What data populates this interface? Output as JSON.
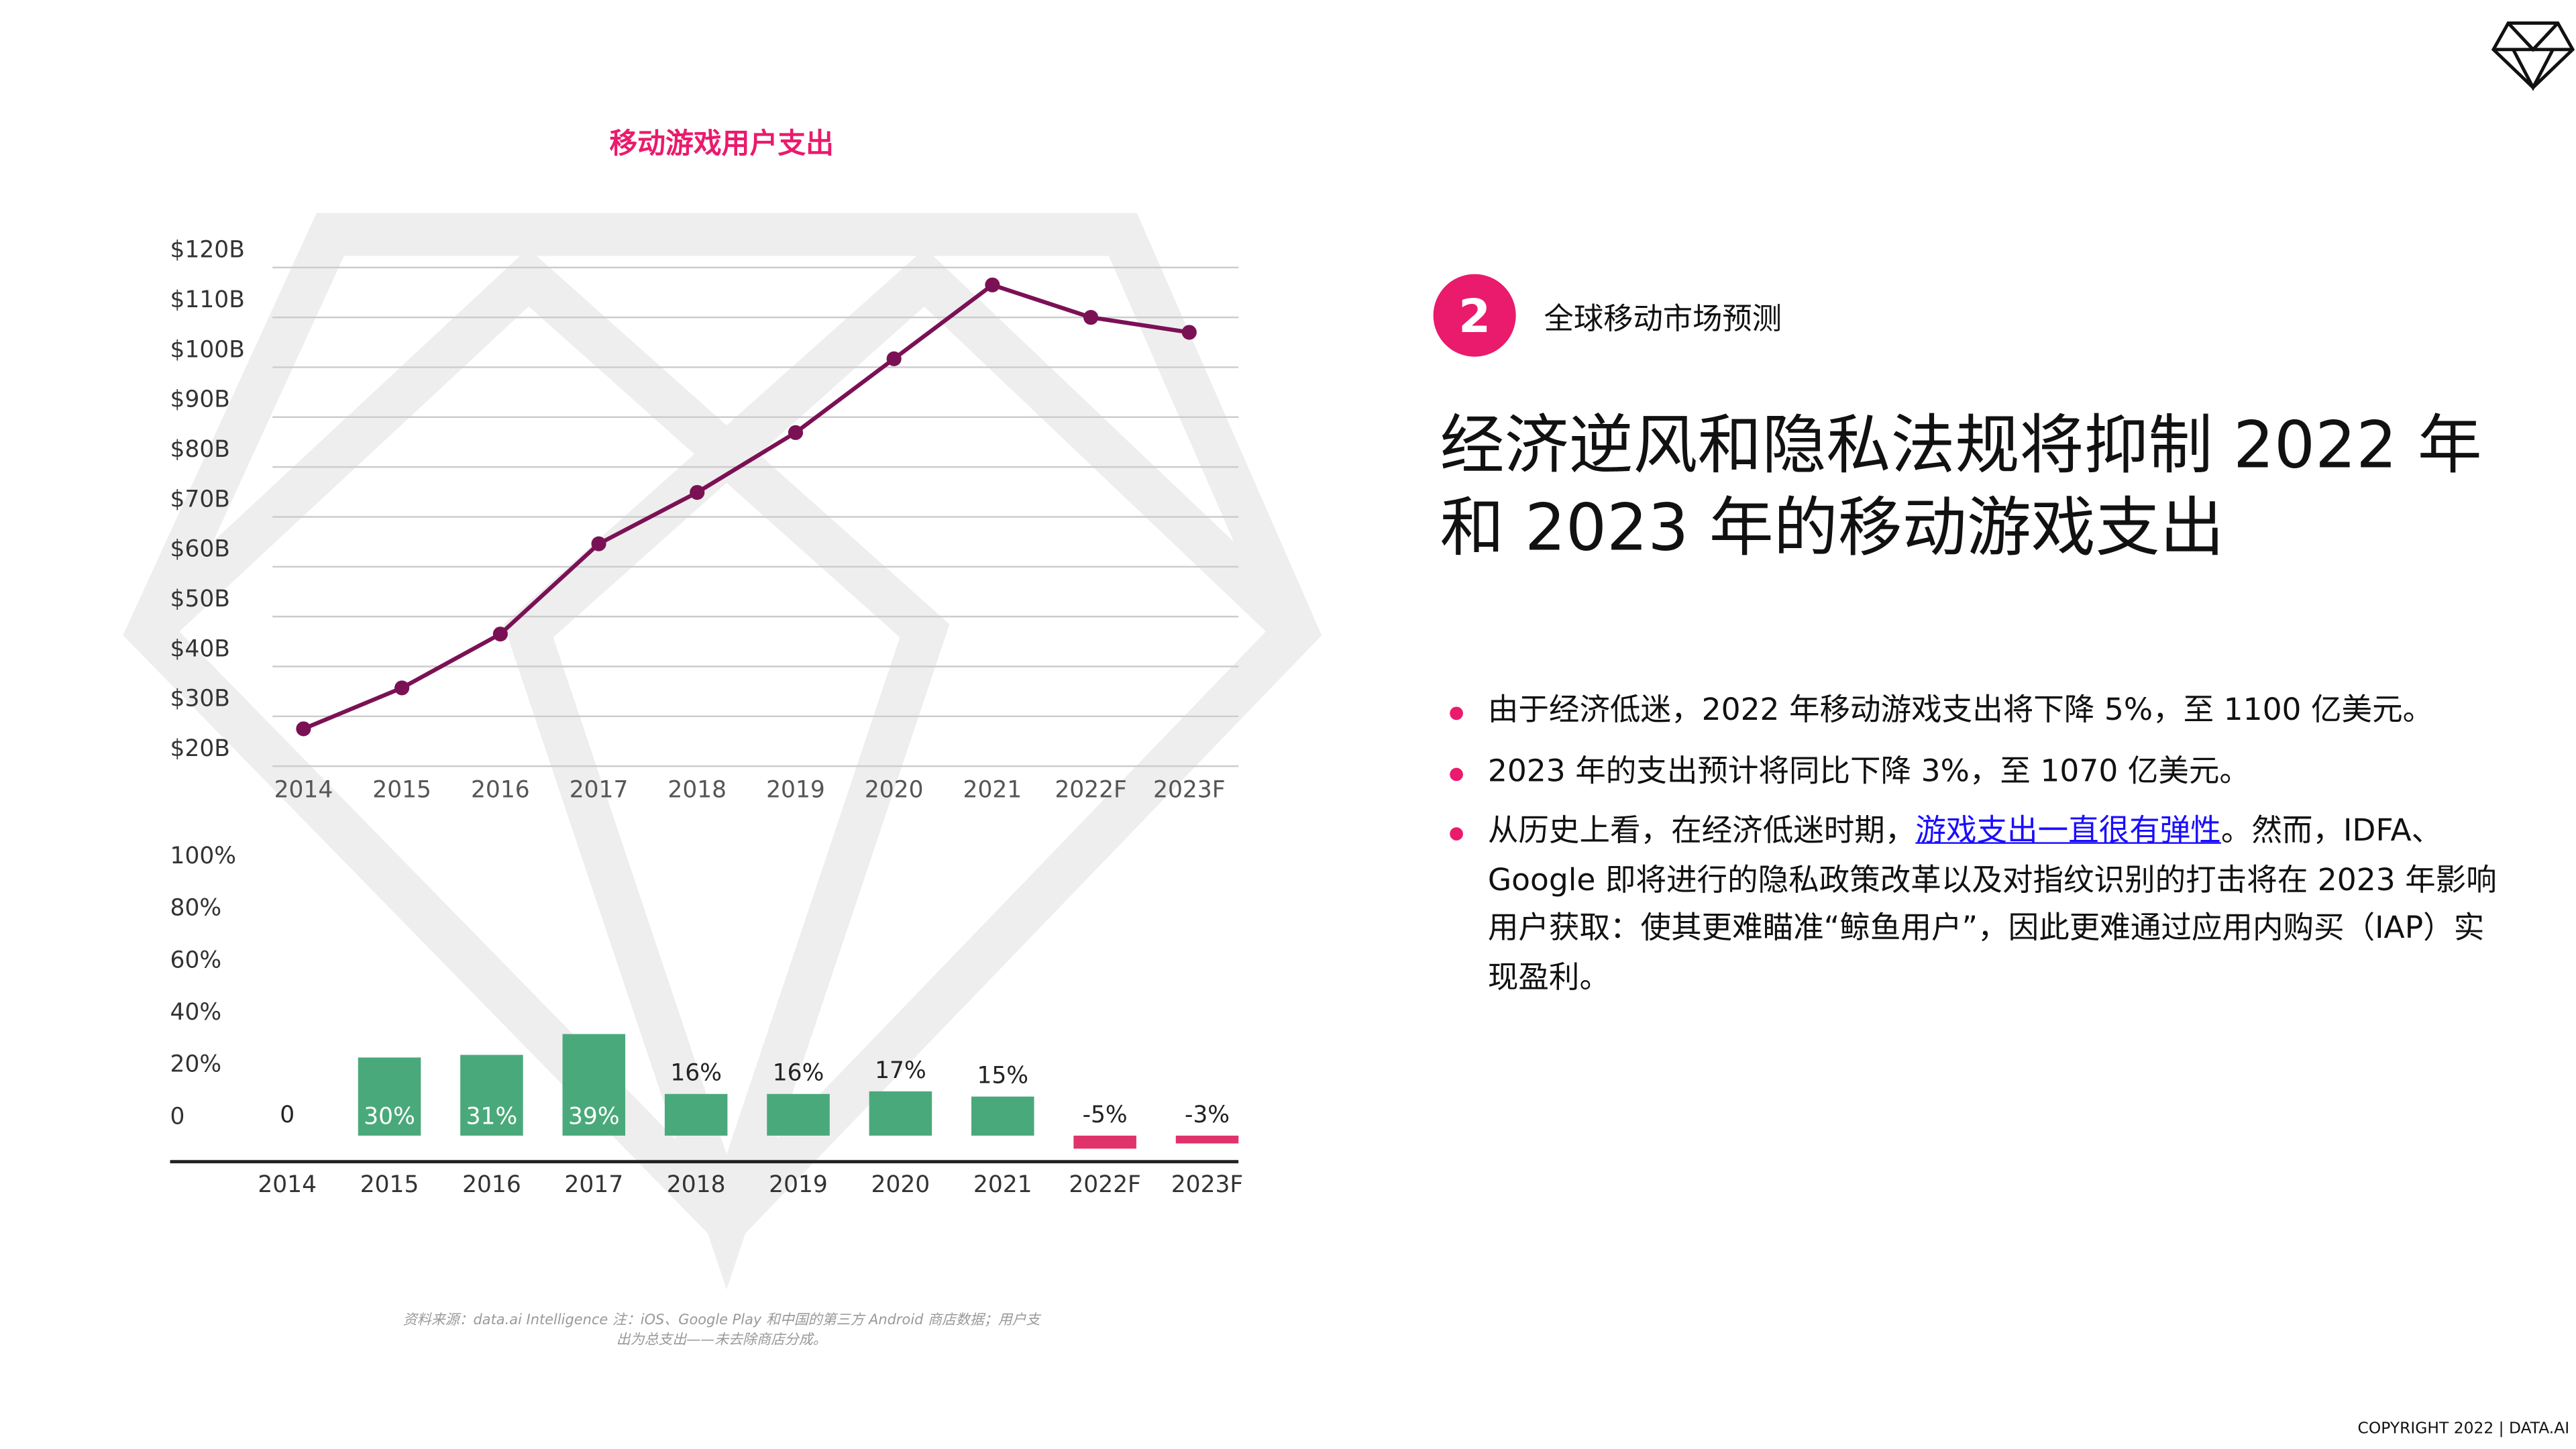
{
  "chart_data": [
    {
      "type": "line",
      "title": "移动游戏用户支出",
      "categories": [
        "2014",
        "2015",
        "2016",
        "2017",
        "2018",
        "2019",
        "2020",
        "2021",
        "2022F",
        "2023F"
      ],
      "series": [
        {
          "color": "#7b1155",
          "values": [
            27.5,
            35.7,
            46.5,
            64.6,
            74.9,
            86.9,
            101.7,
            116.5,
            110,
            107
          ]
        }
      ],
      "ylim": [
        20,
        120
      ],
      "yticks": [
        {
          "value": 20,
          "label": "$20B"
        },
        {
          "value": 30,
          "label": "$30B"
        },
        {
          "value": 40,
          "label": "$40B"
        },
        {
          "value": 50,
          "label": "$50B"
        },
        {
          "value": 60,
          "label": "$60B"
        },
        {
          "value": 70,
          "label": "$70B"
        },
        {
          "value": 80,
          "label": "$80B"
        },
        {
          "value": 90,
          "label": "$90B"
        },
        {
          "value": 100,
          "label": "$100B"
        },
        {
          "value": 110,
          "label": "$110B"
        },
        {
          "value": 120,
          "label": "$120B"
        }
      ],
      "grid": true
    },
    {
      "type": "bar",
      "categories": [
        "2014",
        "2015",
        "2016",
        "2017",
        "2018",
        "2019",
        "2020",
        "2021",
        "2022F",
        "2023F"
      ],
      "values": [
        0,
        30,
        31,
        39,
        16,
        16,
        17,
        15,
        -5,
        -3
      ],
      "value_labels": [
        "0",
        "30%",
        "31%",
        "39%",
        "16%",
        "16%",
        "17%",
        "15%",
        "-5%",
        "-3%"
      ],
      "colors": [
        "#4aa97a",
        "#4aa97a",
        "#4aa97a",
        "#4aa97a",
        "#4aa97a",
        "#4aa97a",
        "#4aa97a",
        "#4aa97a",
        "#e0336b",
        "#e0336b"
      ],
      "ylim": [
        -10,
        100
      ],
      "yticks": [
        0,
        {
          "value": 20,
          "label": "20%"
        },
        {
          "value": 40,
          "label": "40%"
        },
        {
          "value": 60,
          "label": "60%"
        },
        {
          "value": 80,
          "label": "80%"
        },
        {
          "value": 100,
          "label": "100%"
        }
      ],
      "grid": false
    }
  ],
  "section": {
    "number": "2",
    "title": "全球移动市场预测"
  },
  "headline": [
    "经济逆风和隐私法规将抑制 2022 年",
    "和 2023 年的移动游戏支出"
  ],
  "bullets": [
    {
      "text": "由于经济低迷，2022 年移动游戏支出将下降 5%，至 1100 亿美元。"
    },
    {
      "text": "2023 年的支出预计将同比下降 3%，至 1070 亿美元。"
    },
    {
      "before": "从历史上看，在经济低迷时期，",
      "link": "游戏支出一直很有弹性",
      "after": "。然而，IDFA、Google 即将进行的隐私政策改革以及对指纹识别的打击将在 2023 年影响用户获取：使其更难瞄准“鲸鱼用户”，因此更难通过应用内购买（IAP）实现盈利。"
    }
  ],
  "source": "资料来源：data.ai Intelligence 注：iOS、Google Play 和中国的第三方 Android 商店数据；用户支出为总支出——未去除商店分成。",
  "copyright": "COPYRIGHT 2022 | DATA.AI"
}
